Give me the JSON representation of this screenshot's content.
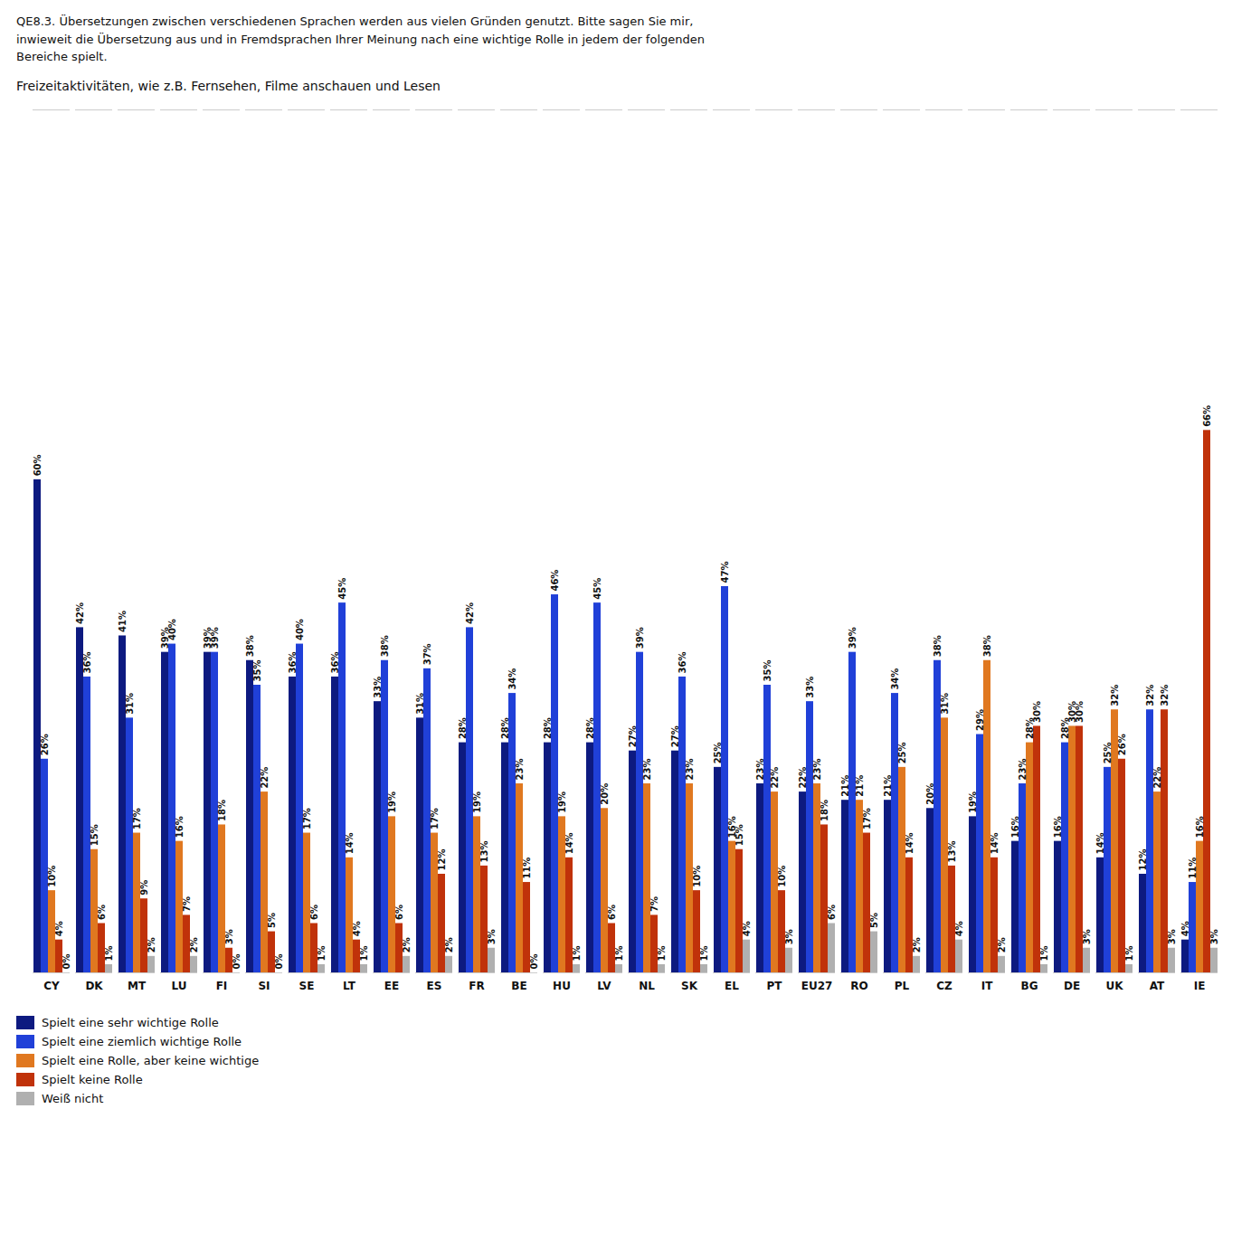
{
  "chart_data": {
    "type": "bar",
    "title": "QE8.3. Übersetzungen zwischen verschiedenen Sprachen werden aus vielen Gründen genutzt. Bitte sagen Sie mir,\ninwieweit die Übersetzung aus und in Fremdsprachen Ihrer Meinung nach eine wichtige Rolle in jedem der folgenden\nBereiche spielt.",
    "subtitle": "Freizeitaktivitäten, wie z.B. Fernsehen, Filme anschauen und Lesen",
    "categories": [
      "CY",
      "DK",
      "MT",
      "LU",
      "FI",
      "SI",
      "SE",
      "LT",
      "EE",
      "ES",
      "FR",
      "BE",
      "HU",
      "LV",
      "NL",
      "SK",
      "EL",
      "PT",
      "EU27",
      "RO",
      "PL",
      "CZ",
      "IT",
      "BG",
      "DE",
      "UK",
      "AT",
      "IE"
    ],
    "series": [
      {
        "name": "Spielt eine sehr wichtige Rolle",
        "color": "#0d1a80",
        "values": [
          60,
          42,
          41,
          39,
          39,
          38,
          36,
          36,
          33,
          31,
          28,
          28,
          28,
          28,
          27,
          27,
          25,
          23,
          22,
          21,
          21,
          20,
          19,
          16,
          16,
          14,
          12,
          4
        ],
        "value_labels": [
          "60%",
          "42%",
          "41%",
          "39%",
          "39%",
          "38%",
          "36%",
          "36%",
          "33%",
          "31%",
          "28%",
          "28%",
          "28%",
          "28%",
          "27%",
          "27%",
          "25%",
          "23%",
          "22%",
          "21%",
          "21%",
          "20%",
          "19%",
          "16%",
          "16%",
          "14%",
          "12%",
          "4%"
        ]
      },
      {
        "name": "Spielt eine ziemlich wichtige Rolle",
        "color": "#2040d8",
        "values": [
          26,
          36,
          31,
          40,
          39,
          35,
          40,
          45,
          38,
          37,
          42,
          34,
          46,
          45,
          39,
          36,
          47,
          35,
          33,
          39,
          34,
          38,
          29,
          23,
          28,
          25,
          32,
          11
        ],
        "value_labels": [
          "26%",
          "36%",
          "31%",
          "40%",
          "39%",
          "35%",
          "40%",
          "45%",
          "38%",
          "37%",
          "42%",
          "34%",
          "46%",
          "45%",
          "39%",
          "36%",
          "47%",
          "35%",
          "33%",
          "39%",
          "34%",
          "38%",
          "29%",
          "23%",
          "28%",
          "25%",
          "32%",
          "11%"
        ]
      },
      {
        "name": "Spielt eine Rolle, aber keine wichtige",
        "color": "#e07820",
        "values": [
          10,
          15,
          17,
          16,
          18,
          22,
          17,
          14,
          19,
          17,
          19,
          23,
          19,
          20,
          23,
          23,
          16,
          22,
          23,
          21,
          25,
          31,
          38,
          28,
          30,
          32,
          22,
          16
        ],
        "value_labels": [
          "10%",
          "15%",
          "17%",
          "16%",
          "18%",
          "22%",
          "17%",
          "14%",
          "19%",
          "17%",
          "19%",
          "23%",
          "19%",
          "20%",
          "23%",
          "23%",
          "16%",
          "22%",
          "23%",
          "21%",
          "25%",
          "31%",
          "38%",
          "28%",
          "30%",
          "32%",
          "22%",
          "16%"
        ]
      },
      {
        "name": "Spielt keine Rolle",
        "color": "#c0320a",
        "values": [
          4,
          6,
          9,
          7,
          3,
          5,
          6,
          4,
          6,
          12,
          13,
          11,
          14,
          6,
          7,
          10,
          15,
          10,
          18,
          17,
          14,
          13,
          14,
          30,
          30,
          26,
          32,
          66
        ],
        "value_labels": [
          "4%",
          "6%",
          "9%",
          "7%",
          "3%",
          "5%",
          "6%",
          "4%",
          "6%",
          "12%",
          "13%",
          "11%",
          "14%",
          "6%",
          "7%",
          "10%",
          "15%",
          "10%",
          "18%",
          "17%",
          "14%",
          "13%",
          "14%",
          "30%",
          "30%",
          "26%",
          "32%",
          "66%"
        ]
      },
      {
        "name": "Weiß nicht",
        "color": "#b0b0b0",
        "values": [
          0,
          1,
          2,
          2,
          0,
          0,
          1,
          1,
          2,
          2,
          3,
          0,
          1,
          1,
          1,
          1,
          4,
          3,
          6,
          5,
          2,
          4,
          2,
          1,
          3,
          1,
          3,
          3
        ],
        "value_labels": [
          "0%",
          "1%",
          "2%",
          "2%",
          "0%",
          "0%",
          "1%",
          "1%",
          "2%",
          "2%",
          "3%",
          "0%",
          "1%",
          "1%",
          "1%",
          "1%",
          "4%",
          "3%",
          "6%",
          "5%",
          "2%",
          "4%",
          "2%",
          "1%",
          "3%",
          "1%",
          "3%",
          "3%"
        ]
      }
    ],
    "ylim": [
      0,
      105
    ],
    "yticks": [],
    "grid": false,
    "data_labels": true,
    "tick_labels": "x",
    "legend": "lower left"
  }
}
